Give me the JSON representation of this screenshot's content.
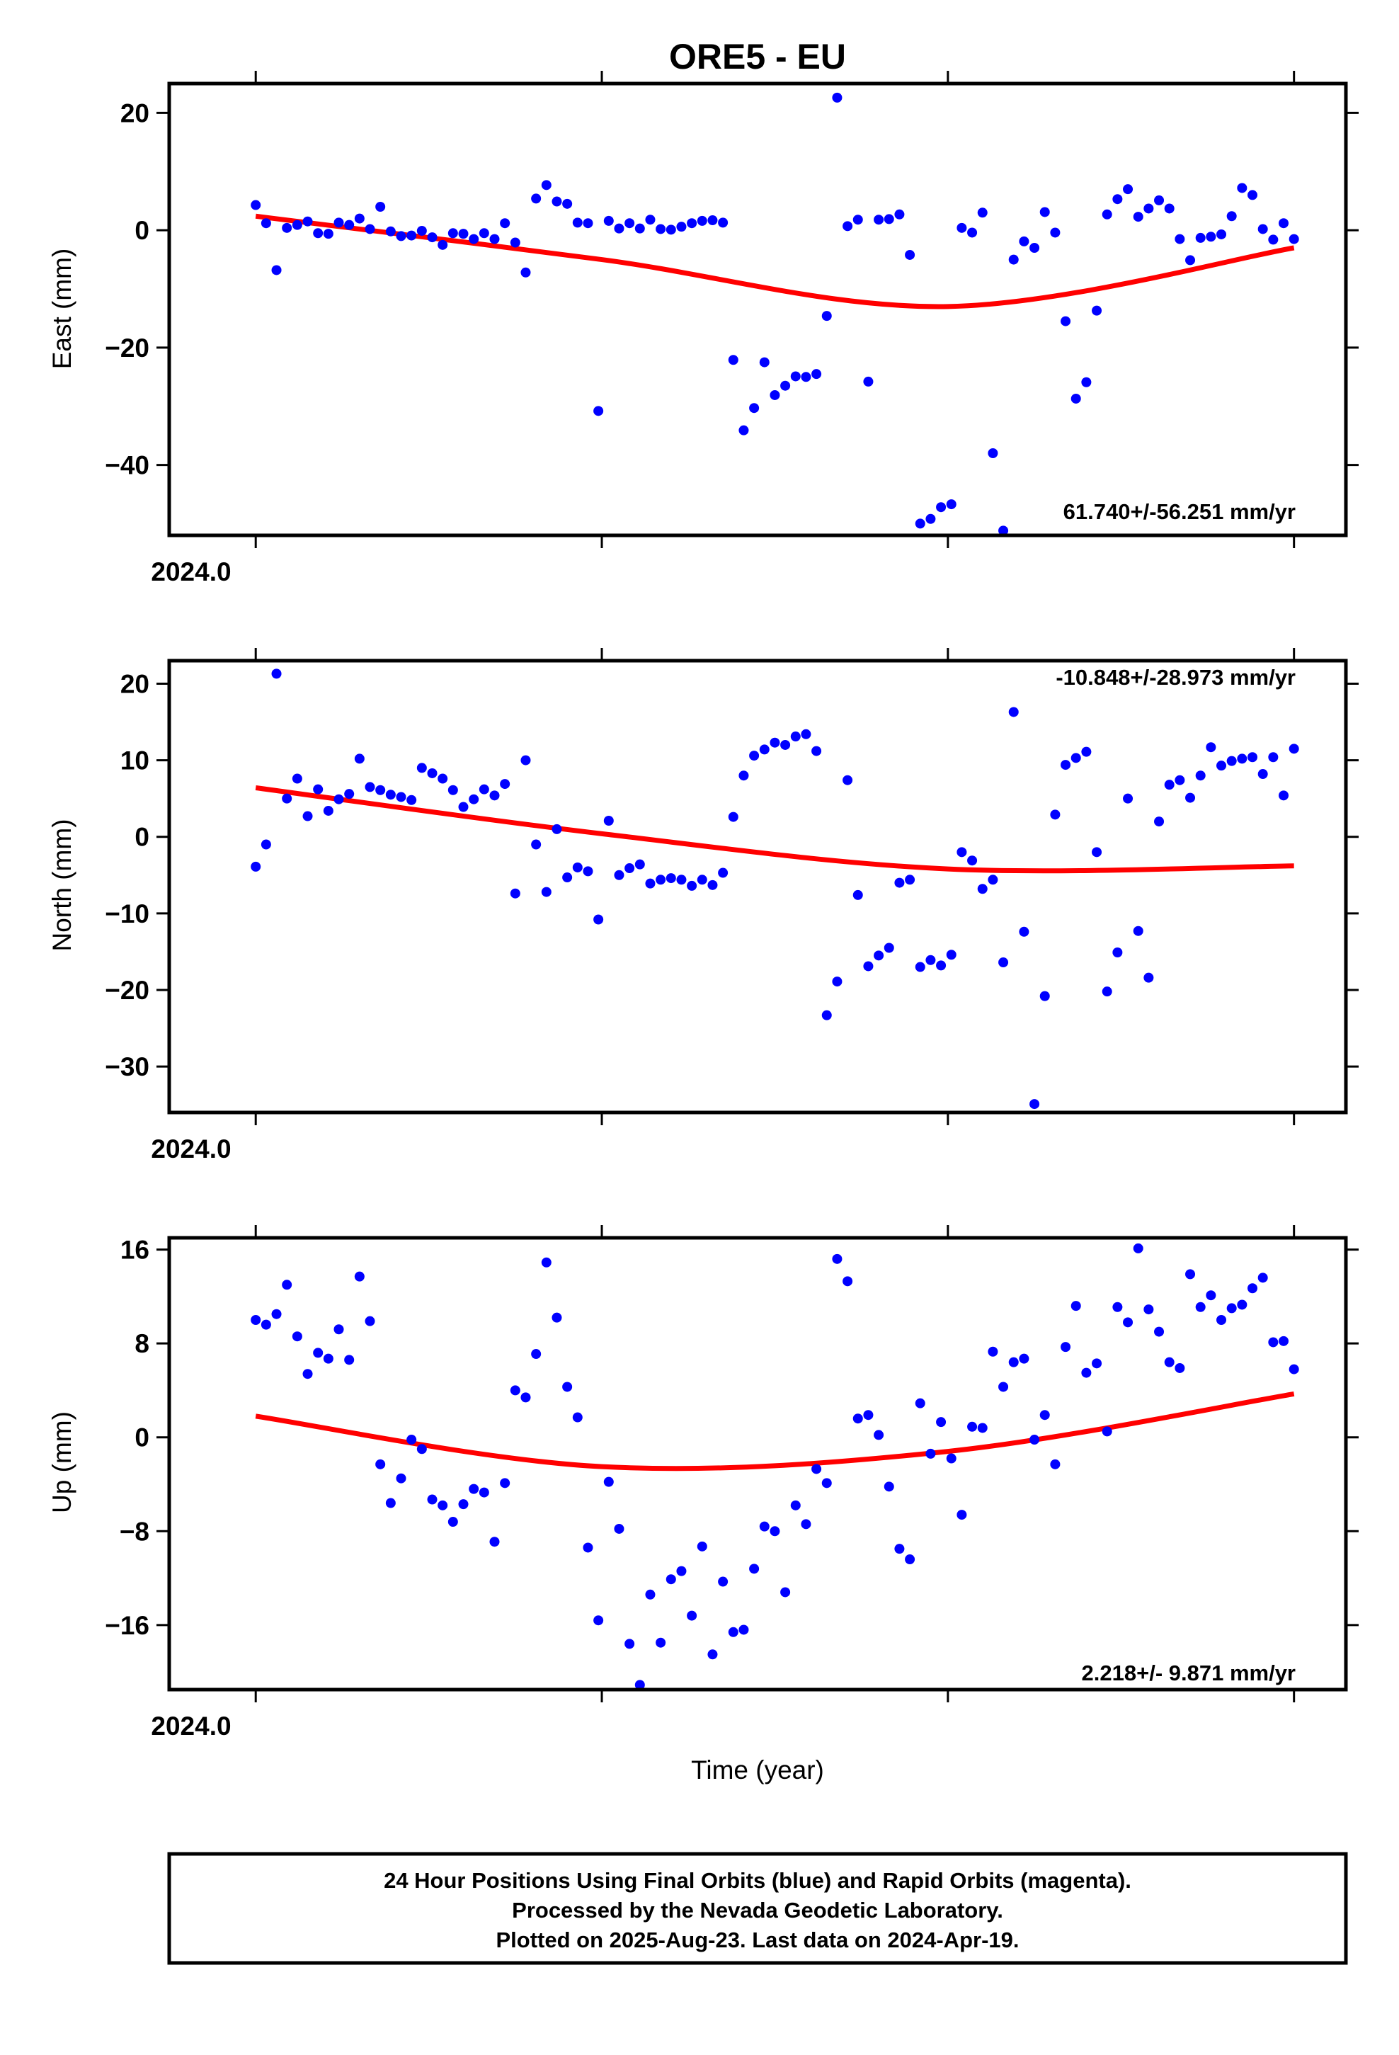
{
  "chart_data": [
    {
      "type": "scatter",
      "title": "ORE5 - EU",
      "ylabel": "East (mm)",
      "xtick_label": "2024.0",
      "xlim": [
        2023.975,
        2024.315
      ],
      "ylim": [
        -52,
        25
      ],
      "yticks": [
        20,
        0,
        -20,
        -40
      ],
      "rate_label": "61.740+/-56.251 mm/yr",
      "series": [
        {
          "name": "Final Orbits",
          "color": "#0000ff",
          "x": [
            2024.0,
            2024.003,
            2024.006,
            2024.009,
            2024.012,
            2024.015,
            2024.018,
            2024.021,
            2024.024,
            2024.027,
            2024.03,
            2024.033,
            2024.036,
            2024.039,
            2024.042,
            2024.045,
            2024.048,
            2024.051,
            2024.054,
            2024.057,
            2024.06,
            2024.063,
            2024.066,
            2024.069,
            2024.072,
            2024.075,
            2024.078,
            2024.081,
            2024.084,
            2024.087,
            2024.09,
            2024.093,
            2024.096,
            2024.099,
            2024.102,
            2024.105,
            2024.108,
            2024.111,
            2024.114,
            2024.117,
            2024.12,
            2024.123,
            2024.126,
            2024.129,
            2024.132,
            2024.135,
            2024.138,
            2024.141,
            2024.144,
            2024.147,
            2024.15,
            2024.153,
            2024.156,
            2024.159,
            2024.162,
            2024.165,
            2024.168,
            2024.171,
            2024.174,
            2024.177,
            2024.18,
            2024.183,
            2024.186,
            2024.189,
            2024.192,
            2024.195,
            2024.198,
            2024.201,
            2024.204,
            2024.207,
            2024.21,
            2024.213,
            2024.216,
            2024.219,
            2024.222,
            2024.225,
            2024.228,
            2024.231,
            2024.234,
            2024.237,
            2024.24,
            2024.243,
            2024.246,
            2024.249,
            2024.252,
            2024.255,
            2024.258,
            2024.261,
            2024.264,
            2024.267,
            2024.27,
            2024.273,
            2024.276,
            2024.279,
            2024.282,
            2024.285,
            2024.288,
            2024.291,
            2024.294,
            2024.297,
            2024.3
          ],
          "y": [
            4.3,
            1.2,
            -6.8,
            0.4,
            0.9,
            1.5,
            -0.5,
            -0.6,
            1.3,
            0.9,
            2.0,
            0.2,
            4.0,
            -0.2,
            -1.0,
            -0.9,
            -0.1,
            -1.2,
            -2.5,
            -0.5,
            -0.6,
            -1.5,
            -0.5,
            -1.5,
            1.2,
            -2.1,
            -7.2,
            5.4,
            7.7,
            4.9,
            4.5,
            1.3,
            1.2,
            -30.8,
            1.6,
            0.3,
            1.2,
            0.3,
            1.8,
            0.2,
            0.1,
            0.6,
            1.2,
            1.6,
            1.7,
            1.3,
            -22.1,
            -34.1,
            -30.3,
            -22.5,
            -28.1,
            -26.5,
            -24.9,
            -25.0,
            -24.5,
            -14.6,
            22.6,
            0.7,
            1.8,
            -25.8,
            1.8,
            1.9,
            2.7,
            -4.2,
            -50.0,
            -49.2,
            -47.2,
            -46.7,
            0.4,
            -0.4,
            3.0,
            -38.0,
            -51.2,
            -5.0,
            -1.9,
            -3.0,
            3.1,
            -0.4,
            -15.5,
            -28.7,
            -25.9,
            -13.7,
            2.7,
            5.3,
            7.0,
            2.3,
            3.7,
            5.1,
            3.7,
            -1.5,
            -5.1,
            -1.3,
            -1.1,
            -0.7,
            2.4,
            7.2,
            6.0,
            0.2,
            -1.6,
            1.2,
            -1.5
          ]
        }
      ],
      "fit": {
        "color": "#ff0000",
        "x": [
          2024.0,
          2024.1,
          2024.2,
          2024.3
        ],
        "y": [
          2.4,
          -5.0,
          -13.0,
          -3.0
        ]
      }
    },
    {
      "type": "scatter",
      "title": "",
      "ylabel": "North (mm)",
      "xtick_label": "2024.0",
      "xlim": [
        2023.975,
        2024.315
      ],
      "ylim": [
        -36,
        23
      ],
      "yticks": [
        20,
        10,
        0,
        -10,
        -20,
        -30
      ],
      "rate_label": "-10.848+/-28.973 mm/yr",
      "series": [
        {
          "name": "Final Orbits",
          "color": "#0000ff",
          "x": [
            2024.0,
            2024.003,
            2024.006,
            2024.009,
            2024.012,
            2024.015,
            2024.018,
            2024.021,
            2024.024,
            2024.027,
            2024.03,
            2024.033,
            2024.036,
            2024.039,
            2024.042,
            2024.045,
            2024.048,
            2024.051,
            2024.054,
            2024.057,
            2024.06,
            2024.063,
            2024.066,
            2024.069,
            2024.072,
            2024.075,
            2024.078,
            2024.081,
            2024.084,
            2024.087,
            2024.09,
            2024.093,
            2024.096,
            2024.099,
            2024.102,
            2024.105,
            2024.108,
            2024.111,
            2024.114,
            2024.117,
            2024.12,
            2024.123,
            2024.126,
            2024.129,
            2024.132,
            2024.135,
            2024.138,
            2024.141,
            2024.144,
            2024.147,
            2024.15,
            2024.153,
            2024.156,
            2024.159,
            2024.162,
            2024.165,
            2024.168,
            2024.171,
            2024.174,
            2024.177,
            2024.18,
            2024.183,
            2024.186,
            2024.189,
            2024.192,
            2024.195,
            2024.198,
            2024.201,
            2024.204,
            2024.207,
            2024.21,
            2024.213,
            2024.216,
            2024.219,
            2024.222,
            2024.225,
            2024.228,
            2024.231,
            2024.234,
            2024.237,
            2024.24,
            2024.243,
            2024.246,
            2024.249,
            2024.252,
            2024.255,
            2024.258,
            2024.261,
            2024.264,
            2024.267,
            2024.27,
            2024.273,
            2024.276,
            2024.279,
            2024.282,
            2024.285,
            2024.288,
            2024.291,
            2024.294,
            2024.297,
            2024.3
          ],
          "y": [
            -3.9,
            -1.0,
            21.3,
            5.0,
            7.6,
            2.7,
            6.2,
            3.4,
            4.9,
            5.6,
            10.2,
            6.5,
            6.1,
            5.5,
            5.2,
            4.8,
            9.0,
            8.3,
            7.6,
            6.1,
            3.9,
            4.9,
            6.2,
            5.4,
            6.9,
            -7.4,
            10.0,
            -1.0,
            -7.2,
            1.0,
            -5.3,
            -4.0,
            -4.5,
            -10.8,
            2.1,
            -5.0,
            -4.1,
            -3.6,
            -6.1,
            -5.6,
            -5.4,
            -5.6,
            -6.4,
            -5.6,
            -6.3,
            -4.7,
            2.6,
            8.0,
            10.6,
            11.4,
            12.3,
            12.0,
            13.1,
            13.4,
            11.2,
            -23.3,
            -18.9,
            7.4,
            -7.6,
            -16.9,
            -15.5,
            -14.5,
            -6.0,
            -5.6,
            -17.0,
            -16.1,
            -16.8,
            -15.4,
            -2.0,
            -3.1,
            -6.8,
            -5.6,
            -16.4,
            16.3,
            -12.4,
            -34.9,
            -20.8,
            2.9,
            9.4,
            10.3,
            11.1,
            -2.0,
            -20.2,
            -15.1,
            5.0,
            -12.3,
            -18.4,
            2.0,
            6.8,
            7.4,
            5.1,
            8.0,
            11.7,
            9.3,
            9.9,
            10.2,
            10.4,
            8.2,
            10.4,
            5.4,
            11.5
          ]
        }
      ],
      "fit": {
        "color": "#ff0000",
        "x": [
          2024.0,
          2024.1,
          2024.2,
          2024.3
        ],
        "y": [
          6.4,
          0.4,
          -4.2,
          -3.8
        ]
      }
    },
    {
      "type": "scatter",
      "title": "",
      "ylabel": "Up (mm)",
      "xlabel": "Time (year)",
      "xtick_label": "2024.0",
      "xlim": [
        2023.975,
        2024.315
      ],
      "ylim": [
        -21.5,
        17
      ],
      "yticks": [
        16,
        8,
        0,
        -8,
        -16
      ],
      "rate_label": "2.218+/- 9.871 mm/yr",
      "series": [
        {
          "name": "Final Orbits",
          "color": "#0000ff",
          "x": [
            2024.0,
            2024.003,
            2024.006,
            2024.009,
            2024.012,
            2024.015,
            2024.018,
            2024.021,
            2024.024,
            2024.027,
            2024.03,
            2024.033,
            2024.036,
            2024.039,
            2024.042,
            2024.045,
            2024.048,
            2024.051,
            2024.054,
            2024.057,
            2024.06,
            2024.063,
            2024.066,
            2024.069,
            2024.072,
            2024.075,
            2024.078,
            2024.081,
            2024.084,
            2024.087,
            2024.09,
            2024.093,
            2024.096,
            2024.099,
            2024.102,
            2024.105,
            2024.108,
            2024.111,
            2024.114,
            2024.117,
            2024.12,
            2024.123,
            2024.126,
            2024.129,
            2024.132,
            2024.135,
            2024.138,
            2024.141,
            2024.144,
            2024.147,
            2024.15,
            2024.153,
            2024.156,
            2024.159,
            2024.162,
            2024.165,
            2024.168,
            2024.171,
            2024.174,
            2024.177,
            2024.18,
            2024.183,
            2024.186,
            2024.189,
            2024.192,
            2024.195,
            2024.198,
            2024.201,
            2024.204,
            2024.207,
            2024.21,
            2024.213,
            2024.216,
            2024.219,
            2024.222,
            2024.225,
            2024.228,
            2024.231,
            2024.234,
            2024.237,
            2024.24,
            2024.243,
            2024.246,
            2024.249,
            2024.252,
            2024.255,
            2024.258,
            2024.261,
            2024.264,
            2024.267,
            2024.27,
            2024.273,
            2024.276,
            2024.279,
            2024.282,
            2024.285,
            2024.288,
            2024.291,
            2024.294,
            2024.297,
            2024.3
          ],
          "y": [
            10.0,
            9.6,
            10.5,
            13.0,
            8.6,
            5.4,
            7.2,
            6.7,
            9.2,
            6.6,
            13.7,
            9.9,
            -2.3,
            -5.6,
            -3.5,
            -0.2,
            -1.0,
            -5.3,
            -5.8,
            -7.2,
            -5.7,
            -4.4,
            -4.7,
            -8.9,
            -3.9,
            4.0,
            3.4,
            7.1,
            14.9,
            10.2,
            4.3,
            1.7,
            -9.4,
            -15.6,
            -3.8,
            -7.8,
            -17.6,
            -21.1,
            -13.4,
            -17.5,
            -12.1,
            -11.4,
            -15.2,
            -9.3,
            -18.5,
            -12.3,
            -16.6,
            -16.4,
            -11.2,
            -7.6,
            -8.0,
            -13.2,
            -5.8,
            -7.4,
            -2.7,
            -3.9,
            15.2,
            13.3,
            1.6,
            1.9,
            0.2,
            -4.2,
            -9.5,
            -10.4,
            2.9,
            -1.4,
            1.3,
            -1.8,
            -6.6,
            0.9,
            0.8,
            7.3,
            4.3,
            6.4,
            6.7,
            -0.2,
            1.9,
            -2.3,
            7.7,
            11.2,
            5.5,
            6.3,
            0.5,
            11.1,
            9.8,
            16.1,
            10.9,
            9.0,
            6.4,
            5.9,
            13.9,
            11.1,
            12.1,
            10.0,
            11.0,
            11.3,
            12.7,
            13.6,
            8.1,
            8.2,
            5.8
          ]
        }
      ],
      "fit": {
        "color": "#ff0000",
        "x": [
          2024.0,
          2024.1,
          2024.2,
          2024.3
        ],
        "y": [
          1.8,
          -2.5,
          -1.2,
          3.7
        ]
      }
    }
  ],
  "footer": {
    "line1": "24 Hour Positions Using Final Orbits (blue) and Rapid Orbits (magenta).",
    "line2": "Processed by the Nevada Geodetic Laboratory.",
    "line3": "Plotted on 2025-Aug-23. Last data on 2024-Apr-19."
  }
}
